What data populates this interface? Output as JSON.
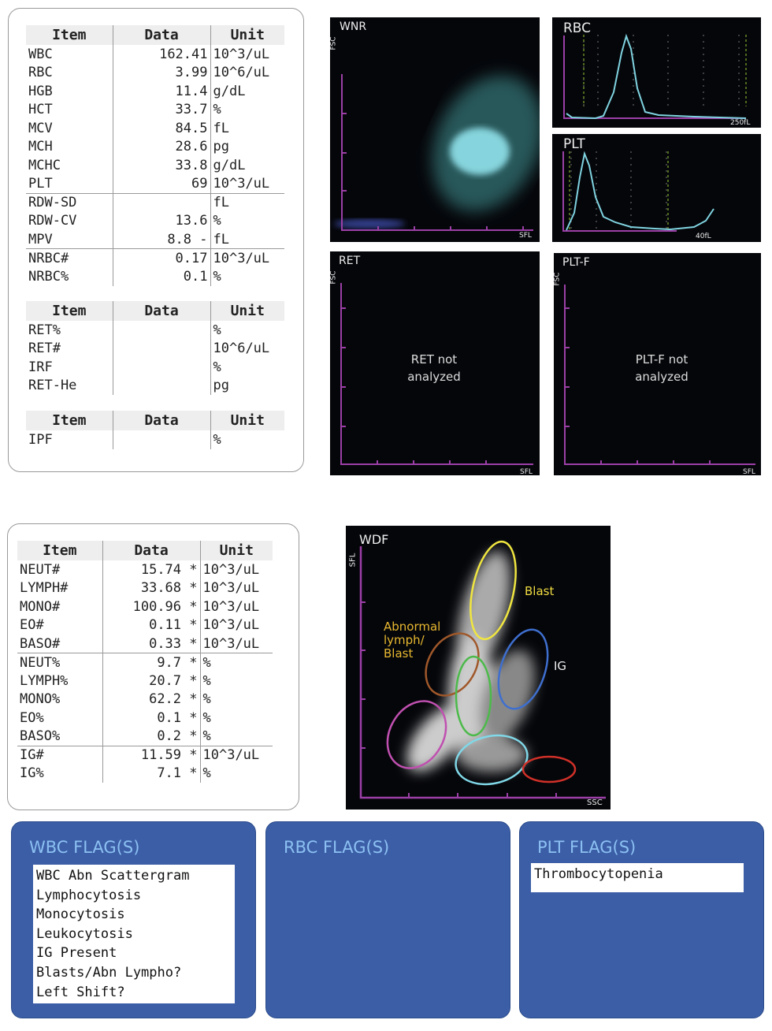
{
  "headers": {
    "item": "Item",
    "data": "Data",
    "unit": "Unit"
  },
  "cbc": [
    [
      "WBC",
      "162.41",
      "10^3/uL"
    ],
    [
      "RBC",
      "3.99",
      "10^6/uL"
    ],
    [
      "HGB",
      "11.4",
      "g/dL"
    ],
    [
      "HCT",
      "33.7",
      "%"
    ],
    [
      "MCV",
      "84.5",
      "fL"
    ],
    [
      "MCH",
      "28.6",
      "pg"
    ],
    [
      "MCHC",
      "33.8",
      "g/dL"
    ],
    [
      "PLT",
      "69",
      "10^3/uL"
    ],
    [
      "RDW-SD",
      "",
      "fL"
    ],
    [
      "RDW-CV",
      "13.6",
      "%"
    ],
    [
      "MPV",
      "8.8 -",
      "fL"
    ],
    [
      "NRBC#",
      "0.17",
      "10^3/uL"
    ],
    [
      "NRBC%",
      "0.1",
      "%"
    ]
  ],
  "ret": [
    [
      "RET%",
      "",
      "%"
    ],
    [
      "RET#",
      "",
      "10^6/uL"
    ],
    [
      "IRF",
      "",
      "%"
    ],
    [
      "RET-He",
      "",
      "pg"
    ]
  ],
  "ipf": [
    [
      "IPF",
      "",
      "%"
    ]
  ],
  "diff": [
    [
      "NEUT#",
      "15.74 *",
      "10^3/uL"
    ],
    [
      "LYMPH#",
      "33.68 *",
      "10^3/uL"
    ],
    [
      "MONO#",
      "100.96 *",
      "10^3/uL"
    ],
    [
      "EO#",
      "0.11 *",
      "10^3/uL"
    ],
    [
      "BASO#",
      "0.33 *",
      "10^3/uL"
    ],
    [
      "NEUT%",
      "9.7 *",
      "%"
    ],
    [
      "LYMPH%",
      "20.7 *",
      "%"
    ],
    [
      "MONO%",
      "62.2 *",
      "%"
    ],
    [
      "EO%",
      "0.1 *",
      "%"
    ],
    [
      "BASO%",
      "0.2 *",
      "%"
    ],
    [
      "IG#",
      "11.59 *",
      "10^3/uL"
    ],
    [
      "IG%",
      "7.1 *",
      "%"
    ]
  ],
  "charts": {
    "wnr": {
      "title": "WNR",
      "x": "SFL",
      "y": "FSC"
    },
    "rbc": {
      "title": "RBC",
      "x": "250fL"
    },
    "plt": {
      "title": "PLT",
      "x": "40fL"
    },
    "ret": {
      "title": "RET",
      "x": "SFL",
      "y": "FSC",
      "msg1": "RET not",
      "msg2": "analyzed"
    },
    "pltf": {
      "title": "PLT-F",
      "x": "SFL",
      "y": "FSC",
      "msg1": "PLT-F not",
      "msg2": "analyzed"
    },
    "wdf": {
      "title": "WDF",
      "x": "SSC",
      "y": "SFL",
      "blast": "Blast",
      "abn1": "Abnormal",
      "abn2": "lymph/",
      "abn3": "Blast",
      "ig": "IG"
    }
  },
  "flags": {
    "wbc": {
      "title": "WBC FLAG(S)",
      "items": "WBC Abn Scattergram\nLymphocytosis\nMonocytosis\nLeukocytosis\nIG Present\nBlasts/Abn Lympho?\nLeft Shift?"
    },
    "rbc": {
      "title": "RBC FLAG(S)"
    },
    "plt": {
      "title": "PLT FLAG(S)",
      "items": "Thrombocytopenia"
    }
  },
  "colors": {
    "flag_bg": "#3b5ea6",
    "flag_title": "#8cc0f2",
    "axis": "#9b3fa6",
    "trace": "#7fd3e0"
  }
}
